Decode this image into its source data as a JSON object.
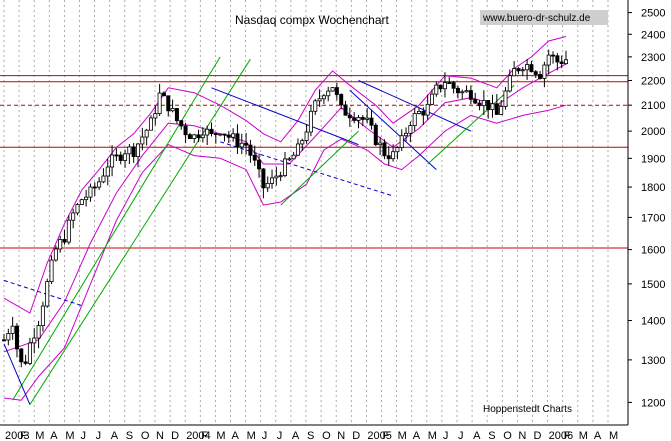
{
  "chart_data": {
    "type": "candlestick",
    "title": "Nasdaq compx Wochenchart",
    "watermark": "www.buero-dr-schulz.de",
    "source": "Hoppenstedt Charts",
    "y_scale": "log",
    "ylim": [
      1150,
      2560
    ],
    "y_ticks": [
      1200,
      1300,
      1400,
      1500,
      1600,
      1700,
      1800,
      1900,
      2000,
      2100,
      2200,
      2300,
      2400,
      2500
    ],
    "x_labels": [
      "2003",
      "F",
      "M",
      "A",
      "M",
      "J",
      "J",
      "A",
      "S",
      "O",
      "N",
      "D",
      "2004",
      "F",
      "M",
      "A",
      "M",
      "J",
      "J",
      "A",
      "S",
      "O",
      "N",
      "D",
      "2005",
      "F",
      "M",
      "A",
      "M",
      "J",
      "J",
      "A",
      "S",
      "O",
      "N",
      "D",
      "2006",
      "F",
      "M",
      "A",
      "M"
    ],
    "x_label_index_of_first_data_month": 1,
    "grid": "vertical-dashed",
    "horizontal_lines": [
      {
        "value": 2220,
        "color": "#cc0000",
        "style": "solid"
      },
      {
        "value": 2195,
        "color": "#cc0000",
        "style": "solid"
      },
      {
        "value": 2100,
        "color": "#cc0000",
        "style": "dashed"
      },
      {
        "value": 1940,
        "color": "#cc0000",
        "style": "solid"
      },
      {
        "value": 1605,
        "color": "#cc0000",
        "style": "solid"
      }
    ],
    "close_path": [
      [
        0,
        1350
      ],
      [
        2,
        1400
      ],
      [
        3,
        1330
      ],
      [
        4,
        1290
      ],
      [
        5,
        1300
      ],
      [
        6,
        1340
      ],
      [
        8,
        1400
      ],
      [
        10,
        1500
      ],
      [
        12,
        1600
      ],
      [
        14,
        1640
      ],
      [
        16,
        1710
      ],
      [
        18,
        1760
      ],
      [
        20,
        1780
      ],
      [
        22,
        1820
      ],
      [
        24,
        1880
      ],
      [
        26,
        1900
      ],
      [
        28,
        1930
      ],
      [
        30,
        1930
      ],
      [
        32,
        1980
      ],
      [
        34,
        2030
      ],
      [
        36,
        2140
      ],
      [
        38,
        2100
      ],
      [
        40,
        2040
      ],
      [
        42,
        2000
      ],
      [
        44,
        1980
      ],
      [
        46,
        2010
      ],
      [
        48,
        1980
      ],
      [
        50,
        2010
      ],
      [
        52,
        1980
      ],
      [
        54,
        1960
      ],
      [
        56,
        1950
      ],
      [
        58,
        1880
      ],
      [
        60,
        1800
      ],
      [
        62,
        1820
      ],
      [
        64,
        1860
      ],
      [
        66,
        1890
      ],
      [
        68,
        1930
      ],
      [
        70,
        2010
      ],
      [
        72,
        2100
      ],
      [
        74,
        2160
      ],
      [
        76,
        2180
      ],
      [
        78,
        2080
      ],
      [
        80,
        2070
      ],
      [
        82,
        2060
      ],
      [
        84,
        2030
      ],
      [
        86,
        1970
      ],
      [
        88,
        1920
      ],
      [
        90,
        1910
      ],
      [
        92,
        1960
      ],
      [
        94,
        2040
      ],
      [
        96,
        2070
      ],
      [
        98,
        2090
      ],
      [
        100,
        2160
      ],
      [
        102,
        2200
      ],
      [
        104,
        2170
      ],
      [
        106,
        2150
      ],
      [
        108,
        2150
      ],
      [
        110,
        2120
      ],
      [
        112,
        2100
      ],
      [
        114,
        2060
      ],
      [
        116,
        2150
      ],
      [
        118,
        2240
      ],
      [
        120,
        2270
      ],
      [
        122,
        2260
      ],
      [
        124,
        2230
      ],
      [
        126,
        2310
      ],
      [
        128,
        2280
      ],
      [
        130,
        2290
      ]
    ],
    "bollinger_upper": [
      [
        0,
        1460
      ],
      [
        6,
        1420
      ],
      [
        10,
        1560
      ],
      [
        14,
        1680
      ],
      [
        18,
        1790
      ],
      [
        22,
        1860
      ],
      [
        26,
        1940
      ],
      [
        30,
        1990
      ],
      [
        34,
        2070
      ],
      [
        38,
        2170
      ],
      [
        44,
        2150
      ],
      [
        50,
        2100
      ],
      [
        56,
        2040
      ],
      [
        60,
        1990
      ],
      [
        64,
        1960
      ],
      [
        68,
        2040
      ],
      [
        72,
        2160
      ],
      [
        76,
        2240
      ],
      [
        80,
        2180
      ],
      [
        86,
        2100
      ],
      [
        90,
        2030
      ],
      [
        96,
        2100
      ],
      [
        102,
        2220
      ],
      [
        108,
        2210
      ],
      [
        114,
        2170
      ],
      [
        118,
        2250
      ],
      [
        122,
        2300
      ],
      [
        126,
        2370
      ],
      [
        130,
        2390
      ]
    ],
    "bollinger_lower": [
      [
        0,
        1210
      ],
      [
        4,
        1205
      ],
      [
        8,
        1260
      ],
      [
        14,
        1330
      ],
      [
        20,
        1500
      ],
      [
        26,
        1690
      ],
      [
        32,
        1850
      ],
      [
        38,
        1950
      ],
      [
        44,
        1910
      ],
      [
        50,
        1900
      ],
      [
        56,
        1860
      ],
      [
        60,
        1740
      ],
      [
        64,
        1750
      ],
      [
        70,
        1810
      ],
      [
        74,
        1930
      ],
      [
        78,
        1970
      ],
      [
        84,
        1930
      ],
      [
        88,
        1880
      ],
      [
        92,
        1860
      ],
      [
        96,
        1910
      ],
      [
        102,
        2000
      ],
      [
        108,
        2060
      ],
      [
        114,
        2030
      ],
      [
        120,
        2060
      ],
      [
        126,
        2080
      ],
      [
        130,
        2100
      ]
    ],
    "moving_average": [
      [
        0,
        1320
      ],
      [
        8,
        1350
      ],
      [
        14,
        1450
      ],
      [
        20,
        1620
      ],
      [
        26,
        1780
      ],
      [
        32,
        1910
      ],
      [
        38,
        2030
      ],
      [
        44,
        2020
      ],
      [
        50,
        1990
      ],
      [
        56,
        1960
      ],
      [
        60,
        1880
      ],
      [
        66,
        1880
      ],
      [
        72,
        1980
      ],
      [
        78,
        2090
      ],
      [
        84,
        2010
      ],
      [
        90,
        1940
      ],
      [
        96,
        2010
      ],
      [
        102,
        2110
      ],
      [
        108,
        2130
      ],
      [
        114,
        2100
      ],
      [
        120,
        2170
      ],
      [
        126,
        2230
      ],
      [
        130,
        2270
      ]
    ],
    "trendlines": [
      {
        "color": "#00aa00",
        "points": [
          [
            2,
            1205
          ],
          [
            50,
            2300
          ]
        ]
      },
      {
        "color": "#00aa00",
        "points": [
          [
            6,
            1195
          ],
          [
            57,
            2290
          ]
        ]
      },
      {
        "color": "#0000cc",
        "points": [
          [
            48,
            2170
          ],
          [
            82,
            1950
          ]
        ]
      },
      {
        "color": "#0000cc",
        "points": [
          [
            0,
            1340
          ],
          [
            6,
            1195
          ]
        ]
      },
      {
        "color": "#0000cc",
        "points": [
          [
            82,
            2200
          ],
          [
            108,
            2000
          ]
        ]
      },
      {
        "color": "#0000cc",
        "points": [
          [
            80,
            2160
          ],
          [
            100,
            1860
          ]
        ]
      },
      {
        "color": "#00aa00",
        "points": [
          [
            64,
            1740
          ],
          [
            82,
            2000
          ]
        ]
      },
      {
        "color": "#00aa00",
        "points": [
          [
            98,
            1880
          ],
          [
            118,
            2180
          ]
        ]
      },
      {
        "color": "#0000cc",
        "dashed": true,
        "points": [
          [
            50,
            1960
          ],
          [
            90,
            1770
          ]
        ]
      },
      {
        "color": "#0000cc",
        "dashed": true,
        "points": [
          [
            0,
            1510
          ],
          [
            18,
            1440
          ]
        ]
      }
    ]
  }
}
